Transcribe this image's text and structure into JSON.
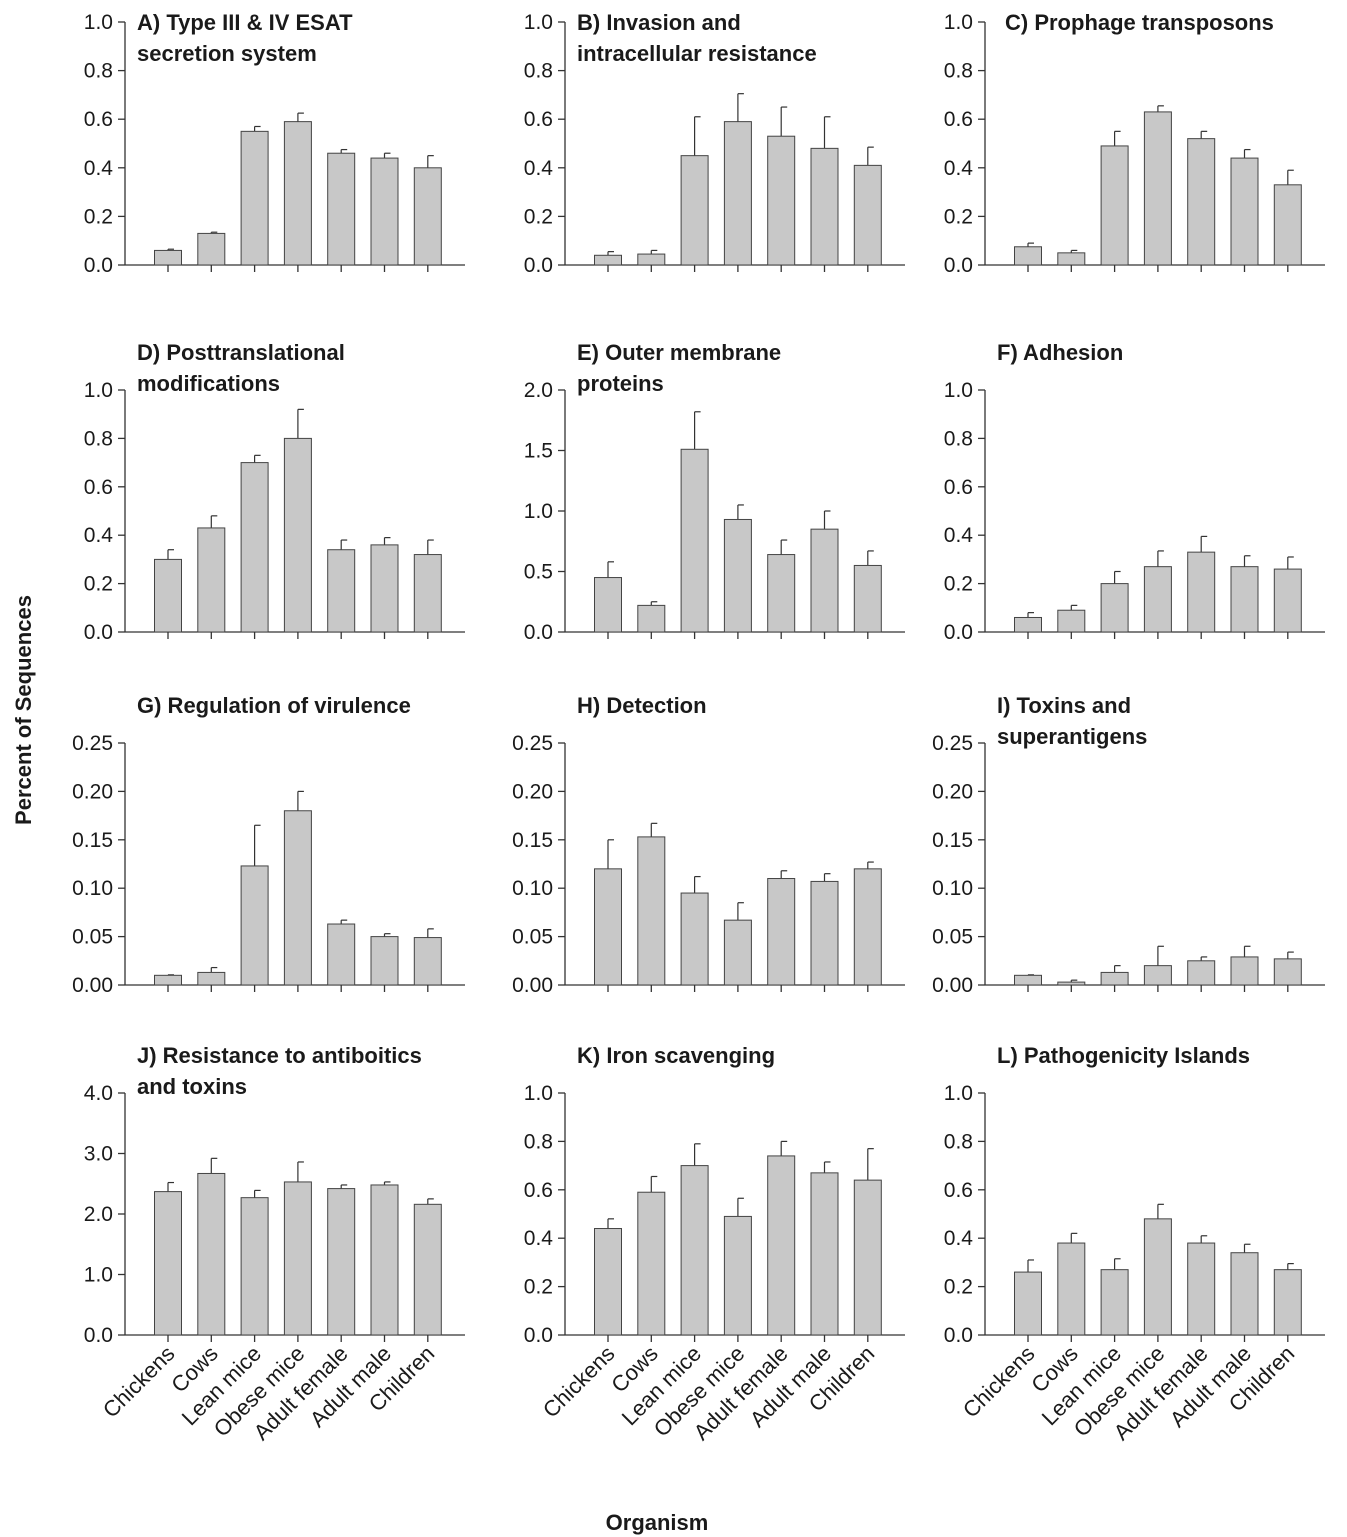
{
  "figure": {
    "ylabel": "Percent of Sequences",
    "xlabel": "Organism"
  },
  "chart_data": [
    {
      "type": "bar",
      "title": [
        "A) Type III & IV ESAT",
        "secretion system"
      ],
      "categories": [
        "Chickens",
        "Cows",
        "Lean mice",
        "Obese mice",
        "Adult female",
        "Adult male",
        "Children"
      ],
      "values": [
        0.06,
        0.13,
        0.55,
        0.59,
        0.46,
        0.44,
        0.4
      ],
      "errors": [
        0.005,
        0.005,
        0.02,
        0.035,
        0.015,
        0.02,
        0.05
      ],
      "ylim": [
        0,
        1.0
      ],
      "yticks": [
        "0.0",
        "0.2",
        "0.4",
        "0.6",
        "0.8",
        "1.0"
      ],
      "bar_color": "#c8c8c8"
    },
    {
      "type": "bar",
      "title": [
        "B) Invasion and",
        "intracellular resistance"
      ],
      "categories": [
        "Chickens",
        "Cows",
        "Lean mice",
        "Obese mice",
        "Adult female",
        "Adult male",
        "Children"
      ],
      "values": [
        0.04,
        0.045,
        0.45,
        0.59,
        0.53,
        0.48,
        0.41
      ],
      "errors": [
        0.015,
        0.015,
        0.16,
        0.115,
        0.12,
        0.13,
        0.075
      ],
      "ylim": [
        0,
        1.0
      ],
      "yticks": [
        "0.0",
        "0.2",
        "0.4",
        "0.6",
        "0.8",
        "1.0"
      ],
      "bar_color": "#c8c8c8"
    },
    {
      "type": "bar",
      "title": [
        "C) Prophage transposons"
      ],
      "categories": [
        "Chickens",
        "Cows",
        "Lean mice",
        "Obese mice",
        "Adult female",
        "Adult male",
        "Children"
      ],
      "values": [
        0.075,
        0.05,
        0.49,
        0.63,
        0.52,
        0.44,
        0.33
      ],
      "errors": [
        0.015,
        0.01,
        0.06,
        0.025,
        0.03,
        0.035,
        0.06
      ],
      "ylim": [
        0,
        1.0
      ],
      "yticks": [
        "0.0",
        "0.2",
        "0.4",
        "0.6",
        "0.8",
        "1.0"
      ],
      "bar_color": "#c8c8c8"
    },
    {
      "type": "bar",
      "title": [
        "D) Posttranslational",
        "modifications"
      ],
      "categories": [
        "Chickens",
        "Cows",
        "Lean mice",
        "Obese mice",
        "Adult female",
        "Adult male",
        "Children"
      ],
      "values": [
        0.3,
        0.43,
        0.7,
        0.8,
        0.34,
        0.36,
        0.32
      ],
      "errors": [
        0.04,
        0.05,
        0.03,
        0.12,
        0.04,
        0.03,
        0.06
      ],
      "ylim": [
        0,
        1.0
      ],
      "yticks": [
        "0.0",
        "0.2",
        "0.4",
        "0.6",
        "0.8",
        "1.0"
      ],
      "bar_color": "#c8c8c8"
    },
    {
      "type": "bar",
      "title": [
        "E) Outer membrane",
        "proteins"
      ],
      "categories": [
        "Chickens",
        "Cows",
        "Lean mice",
        "Obese mice",
        "Adult female",
        "Adult male",
        "Children"
      ],
      "values": [
        0.45,
        0.22,
        1.51,
        0.93,
        0.64,
        0.85,
        0.55
      ],
      "errors": [
        0.13,
        0.03,
        0.31,
        0.12,
        0.12,
        0.15,
        0.12
      ],
      "ylim": [
        0,
        2.0
      ],
      "yticks": [
        "0.0",
        "0.5",
        "1.0",
        "1.5",
        "2.0"
      ],
      "bar_color": "#c8c8c8"
    },
    {
      "type": "bar",
      "title": [
        "F) Adhesion"
      ],
      "categories": [
        "Chickens",
        "Cows",
        "Lean mice",
        "Obese mice",
        "Adult female",
        "Adult male",
        "Children"
      ],
      "values": [
        0.06,
        0.09,
        0.2,
        0.27,
        0.33,
        0.27,
        0.26
      ],
      "errors": [
        0.02,
        0.02,
        0.05,
        0.065,
        0.065,
        0.045,
        0.05
      ],
      "ylim": [
        0,
        1.0
      ],
      "yticks": [
        "0.0",
        "0.2",
        "0.4",
        "0.6",
        "0.8",
        "1.0"
      ],
      "bar_color": "#c8c8c8"
    },
    {
      "type": "bar",
      "title": [
        "G) Regulation of virulence"
      ],
      "categories": [
        "Chickens",
        "Cows",
        "Lean mice",
        "Obese mice",
        "Adult female",
        "Adult male",
        "Children"
      ],
      "values": [
        0.01,
        0.013,
        0.123,
        0.18,
        0.063,
        0.05,
        0.049
      ],
      "errors": [
        0.0005,
        0.005,
        0.042,
        0.02,
        0.004,
        0.003,
        0.009
      ],
      "ylim": [
        0,
        0.25
      ],
      "yticks": [
        "0.00",
        "0.05",
        "0.10",
        "0.15",
        "0.20",
        "0.25"
      ],
      "bar_color": "#c8c8c8"
    },
    {
      "type": "bar",
      "title": [
        "H) Detection"
      ],
      "categories": [
        "Chickens",
        "Cows",
        "Lean mice",
        "Obese mice",
        "Adult female",
        "Adult male",
        "Children"
      ],
      "values": [
        0.12,
        0.153,
        0.095,
        0.067,
        0.11,
        0.107,
        0.12
      ],
      "errors": [
        0.03,
        0.014,
        0.017,
        0.018,
        0.008,
        0.008,
        0.007
      ],
      "ylim": [
        0,
        0.25
      ],
      "yticks": [
        "0.00",
        "0.05",
        "0.10",
        "0.15",
        "0.20",
        "0.25"
      ],
      "bar_color": "#c8c8c8"
    },
    {
      "type": "bar",
      "title": [
        "I) Toxins and",
        "superantigens"
      ],
      "categories": [
        "Chickens",
        "Cows",
        "Lean mice",
        "Obese mice",
        "Adult female",
        "Adult male",
        "Children"
      ],
      "values": [
        0.01,
        0.003,
        0.013,
        0.02,
        0.025,
        0.029,
        0.027
      ],
      "errors": [
        0.0005,
        0.002,
        0.007,
        0.02,
        0.004,
        0.011,
        0.007
      ],
      "ylim": [
        0,
        0.25
      ],
      "yticks": [
        "0.00",
        "0.05",
        "0.10",
        "0.15",
        "0.20",
        "0.25"
      ],
      "bar_color": "#c8c8c8"
    },
    {
      "type": "bar",
      "title": [
        "J) Resistance to antiboitics",
        "and toxins"
      ],
      "categories": [
        "Chickens",
        "Cows",
        "Lean mice",
        "Obese mice",
        "Adult female",
        "Adult male",
        "Children"
      ],
      "values": [
        2.37,
        2.67,
        2.27,
        2.53,
        2.42,
        2.48,
        2.16
      ],
      "errors": [
        0.15,
        0.25,
        0.12,
        0.33,
        0.06,
        0.05,
        0.09
      ],
      "ylim": [
        0,
        4.0
      ],
      "yticks": [
        "0.0",
        "1.0",
        "2.0",
        "3.0",
        "4.0"
      ],
      "bar_color": "#c8c8c8"
    },
    {
      "type": "bar",
      "title": [
        "K) Iron scavenging"
      ],
      "categories": [
        "Chickens",
        "Cows",
        "Lean mice",
        "Obese mice",
        "Adult female",
        "Adult male",
        "Children"
      ],
      "values": [
        0.44,
        0.59,
        0.7,
        0.49,
        0.74,
        0.67,
        0.64
      ],
      "errors": [
        0.04,
        0.065,
        0.09,
        0.075,
        0.06,
        0.045,
        0.13
      ],
      "ylim": [
        0,
        1.0
      ],
      "yticks": [
        "0.0",
        "0.2",
        "0.4",
        "0.6",
        "0.8",
        "1.0"
      ],
      "bar_color": "#c8c8c8"
    },
    {
      "type": "bar",
      "title": [
        "L) Pathogenicity Islands"
      ],
      "categories": [
        "Chickens",
        "Cows",
        "Lean mice",
        "Obese mice",
        "Adult female",
        "Adult male",
        "Children"
      ],
      "values": [
        0.26,
        0.38,
        0.27,
        0.48,
        0.38,
        0.34,
        0.27
      ],
      "errors": [
        0.05,
        0.04,
        0.045,
        0.06,
        0.03,
        0.035,
        0.025
      ],
      "ylim": [
        0,
        1.0
      ],
      "yticks": [
        "0.0",
        "0.2",
        "0.4",
        "0.6",
        "0.8",
        "1.0"
      ],
      "bar_color": "#c8c8c8"
    }
  ]
}
